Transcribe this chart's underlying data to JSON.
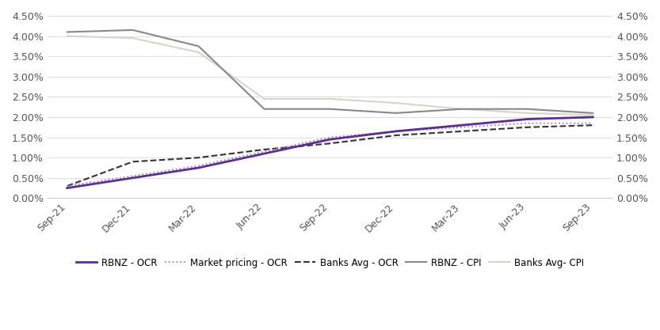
{
  "x_labels": [
    "Sep-21",
    "Dec-21",
    "Mar-22",
    "Jun-22",
    "Sep-22",
    "Dec-22",
    "Mar-23",
    "Jun-23",
    "Sep-23"
  ],
  "rbnz_ocr": [
    0.0025,
    0.005,
    0.0075,
    0.011,
    0.0145,
    0.0165,
    0.018,
    0.0195,
    0.02
  ],
  "market_ocr": [
    0.003,
    0.0055,
    0.008,
    0.0115,
    0.015,
    0.0165,
    0.0175,
    0.0185,
    0.0185
  ],
  "banks_avg_ocr": [
    0.003,
    0.009,
    0.01,
    0.012,
    0.0135,
    0.0155,
    0.0165,
    0.0175,
    0.018
  ],
  "rbnz_cpi": [
    0.041,
    0.0415,
    0.0375,
    0.022,
    0.022,
    0.021,
    0.022,
    0.022,
    0.021
  ],
  "banks_avg_cpi": [
    0.04,
    0.0395,
    0.036,
    0.0245,
    0.0245,
    0.0235,
    0.022,
    0.021,
    0.0205
  ],
  "colors": {
    "RBNZ - OCR": "#5b2d8e",
    "Market pricing - OCR": "#9b7fcb",
    "Banks Avg - OCR": "#333333",
    "RBNZ - CPI": "#888888",
    "Banks Avg- CPI": "#d8d5c8"
  },
  "ylim": [
    0.0,
    0.045
  ],
  "yticks": [
    0.0,
    0.005,
    0.01,
    0.015,
    0.02,
    0.025,
    0.03,
    0.035,
    0.04,
    0.045
  ],
  "background_color": "#ffffff"
}
